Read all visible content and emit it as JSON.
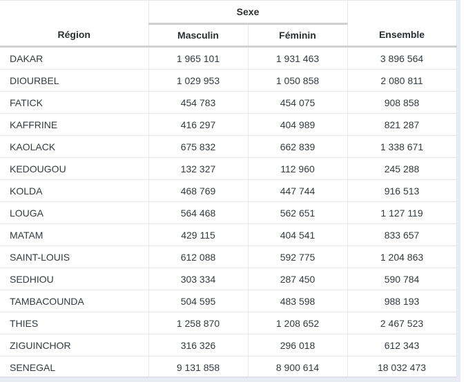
{
  "table": {
    "headers": {
      "region": "Région",
      "group": "Sexe",
      "masculin": "Masculin",
      "feminin": "Féminin",
      "ensemble": "Ensemble"
    },
    "rows": [
      {
        "region": "DAKAR",
        "masculin": "1 965 101",
        "feminin": "1 931 463",
        "ensemble": "3 896 564"
      },
      {
        "region": "DIOURBEL",
        "masculin": "1 029 953",
        "feminin": "1 050 858",
        "ensemble": "2 080 811"
      },
      {
        "region": "FATICK",
        "masculin": "454 783",
        "feminin": "454 075",
        "ensemble": "908 858"
      },
      {
        "region": "KAFFRINE",
        "masculin": "416 297",
        "feminin": "404 989",
        "ensemble": "821 287"
      },
      {
        "region": "KAOLACK",
        "masculin": "675 832",
        "feminin": "662 839",
        "ensemble": "1 338 671"
      },
      {
        "region": "KEDOUGOU",
        "masculin": "132 327",
        "feminin": "112 960",
        "ensemble": "245 288"
      },
      {
        "region": "KOLDA",
        "masculin": "468 769",
        "feminin": "447 744",
        "ensemble": "916 513"
      },
      {
        "region": "LOUGA",
        "masculin": "564 468",
        "feminin": "562 651",
        "ensemble": "1 127 119"
      },
      {
        "region": "MATAM",
        "masculin": "429 115",
        "feminin": "404 541",
        "ensemble": "833 657"
      },
      {
        "region": "SAINT-LOUIS",
        "masculin": "612 088",
        "feminin": "592 775",
        "ensemble": "1 204 863"
      },
      {
        "region": "SEDHIOU",
        "masculin": "303 334",
        "feminin": "287 450",
        "ensemble": "590 784"
      },
      {
        "region": "TAMBACOUNDA",
        "masculin": "504 595",
        "feminin": "483 598",
        "ensemble": "988 193"
      },
      {
        "region": "THIES",
        "masculin": "1 258 870",
        "feminin": "1 208 652",
        "ensemble": "2 467 523"
      },
      {
        "region": "ZIGUINCHOR",
        "masculin": "316 326",
        "feminin": "296 018",
        "ensemble": "612 343"
      },
      {
        "region": "SENEGAL",
        "masculin": "9 131 858",
        "feminin": "8 900 614",
        "ensemble": "18 032 473"
      }
    ]
  },
  "colors": {
    "text": "#333a40",
    "header_text": "#2b2f33",
    "header_rule": "#cfd0d2",
    "cell_border": "#e6e8ea",
    "page_background": "#e9ecf3"
  }
}
